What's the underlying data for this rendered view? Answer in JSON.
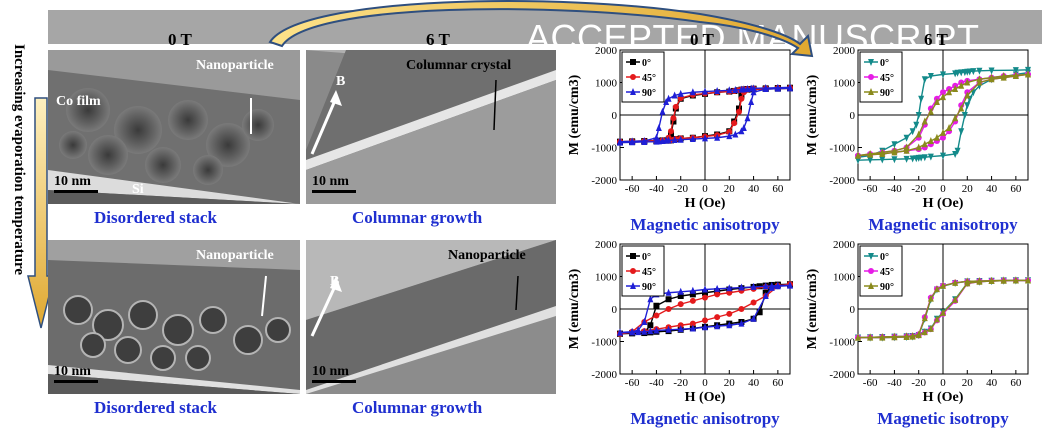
{
  "banner": {
    "text": "ACCEPTED MANUSCRIPT"
  },
  "side_label": "Increasing evaporation temperature",
  "tem_headers": {
    "left": "0 T",
    "right": "6 T"
  },
  "plot_headers": {
    "left": "0 T",
    "right": "6 T"
  },
  "tem": {
    "top_left": {
      "label_particle": "Nanoparticle",
      "label_film": "Co film",
      "label_sub": "Si",
      "scale": "10 nm",
      "caption": "Disordered stack"
    },
    "top_right": {
      "label_crystal": "Columnar crystal",
      "label_b": "B",
      "scale": "10 nm",
      "caption": "Columnar growth"
    },
    "bottom_left": {
      "label_particle": "Nanoparticle",
      "scale": "10 nm",
      "caption": "Disordered stack"
    },
    "bottom_right": {
      "label_particle": "Nanoparticle",
      "label_b": "B",
      "scale": "10 nm",
      "caption": "Columnar growth"
    }
  },
  "colors": {
    "black": "#000000",
    "red": "#e41a1c",
    "blue": "#1f1fd6",
    "teal": "#138a8a",
    "magenta": "#e61ce6",
    "olive": "#8a8a1c",
    "caption": "#1f2fd0"
  },
  "chart_data": [
    {
      "type": "line",
      "id": "top-left",
      "xlabel": "H (Oe)",
      "ylabel": "M (emu/cm3)",
      "xlim": [
        -70,
        70
      ],
      "ylim": [
        -2000,
        2000
      ],
      "xticks": [
        -60,
        -40,
        -20,
        0,
        20,
        40,
        60
      ],
      "yticks": [
        -2000,
        -1000,
        0,
        1000,
        2000
      ],
      "legend": [
        "0°",
        "45°",
        "90°"
      ],
      "caption": "Magnetic anisotropy",
      "series": [
        {
          "name": "0°",
          "color": "#000000",
          "marker": "square",
          "x": [
            -70,
            -60,
            -50,
            -40,
            -35,
            -30,
            -28,
            -26,
            -24,
            -20,
            -10,
            0,
            10,
            20,
            24,
            28,
            30,
            32,
            35,
            40,
            50,
            60,
            70
          ],
          "y_desc": [
            -820,
            -810,
            -800,
            -790,
            -780,
            -760,
            -600,
            -200,
            200,
            500,
            600,
            650,
            700,
            720,
            740,
            760,
            780,
            790,
            800,
            810,
            820,
            830,
            840
          ],
          "y_asc": [
            -840,
            -830,
            -820,
            -810,
            -800,
            -790,
            -780,
            -760,
            -740,
            -720,
            -700,
            -650,
            -600,
            -500,
            -200,
            200,
            600,
            760,
            780,
            790,
            800,
            810,
            820
          ]
        },
        {
          "name": "45°",
          "color": "#e41a1c",
          "marker": "circle",
          "x": [
            -70,
            -60,
            -50,
            -40,
            -35,
            -30,
            -28,
            -26,
            -24,
            -20,
            -10,
            0,
            10,
            20,
            24,
            28,
            30,
            32,
            35,
            40,
            50,
            60,
            70
          ],
          "y_desc": [
            -820,
            -810,
            -800,
            -790,
            -780,
            -700,
            -500,
            -100,
            250,
            520,
            620,
            660,
            700,
            720,
            740,
            760,
            780,
            790,
            800,
            810,
            820,
            830,
            840
          ],
          "y_asc": [
            -840,
            -830,
            -820,
            -810,
            -800,
            -790,
            -780,
            -760,
            -740,
            -720,
            -700,
            -660,
            -620,
            -520,
            -250,
            100,
            500,
            700,
            780,
            790,
            800,
            810,
            820
          ]
        },
        {
          "name": "90°",
          "color": "#1f1fd6",
          "marker": "triangle",
          "x": [
            -70,
            -60,
            -50,
            -40,
            -38,
            -35,
            -32,
            -30,
            -25,
            -20,
            -10,
            0,
            10,
            20,
            25,
            30,
            32,
            35,
            38,
            40,
            50,
            60,
            70
          ],
          "y_desc": [
            -820,
            -810,
            -800,
            -700,
            -400,
            100,
            400,
            500,
            600,
            650,
            700,
            720,
            740,
            760,
            770,
            780,
            790,
            800,
            810,
            820,
            830,
            840,
            850
          ],
          "y_asc": [
            -850,
            -840,
            -830,
            -820,
            -810,
            -800,
            -790,
            -780,
            -770,
            -760,
            -740,
            -720,
            -700,
            -650,
            -600,
            -500,
            -400,
            -100,
            400,
            700,
            800,
            810,
            820
          ]
        }
      ]
    },
    {
      "type": "line",
      "id": "top-right",
      "xlabel": "H (Oe)",
      "ylabel": "M (emu/cm3)",
      "xlim": [
        -70,
        70
      ],
      "ylim": [
        -2000,
        2000
      ],
      "xticks": [
        -60,
        -40,
        -20,
        0,
        20,
        40,
        60
      ],
      "yticks": [
        -2000,
        -1000,
        0,
        1000,
        2000
      ],
      "legend": [
        "0°",
        "45°",
        "90°"
      ],
      "caption": "Magnetic anisotropy",
      "series": [
        {
          "name": "0°",
          "color": "#138a8a",
          "marker": "triangle-down",
          "x": [
            -70,
            -60,
            -50,
            -40,
            -30,
            -25,
            -22,
            -20,
            -18,
            -15,
            -10,
            0,
            10,
            12,
            15,
            18,
            20,
            22,
            25,
            30,
            40,
            60,
            70
          ],
          "y_desc": [
            -1300,
            -1250,
            -1100,
            -900,
            -700,
            -500,
            -300,
            0,
            500,
            1100,
            1200,
            1250,
            1280,
            1300,
            1310,
            1320,
            1330,
            1340,
            1350,
            1360,
            1370,
            1380,
            1390
          ],
          "y_asc": [
            -1390,
            -1380,
            -1370,
            -1360,
            -1350,
            -1340,
            -1330,
            -1320,
            -1310,
            -1300,
            -1280,
            -1250,
            -1200,
            -1100,
            -500,
            0,
            300,
            500,
            700,
            900,
            1100,
            1250,
            1300
          ]
        },
        {
          "name": "45°",
          "color": "#e61ce6",
          "marker": "circle",
          "x": [
            -70,
            -60,
            -50,
            -40,
            -30,
            -20,
            -15,
            -10,
            -5,
            0,
            5,
            10,
            15,
            20,
            30,
            40,
            50,
            60,
            70
          ],
          "y_desc": [
            -1250,
            -1200,
            -1150,
            -1100,
            -1000,
            -700,
            -300,
            200,
            500,
            700,
            800,
            900,
            1000,
            1050,
            1100,
            1150,
            1200,
            1220,
            1250
          ],
          "y_asc": [
            -1250,
            -1220,
            -1200,
            -1150,
            -1100,
            -1050,
            -1000,
            -900,
            -800,
            -700,
            -500,
            -200,
            300,
            700,
            1000,
            1100,
            1150,
            1200,
            1250
          ]
        },
        {
          "name": "90°",
          "color": "#8a8a1c",
          "marker": "triangle",
          "x": [
            -70,
            -60,
            -50,
            -40,
            -30,
            -20,
            -15,
            -10,
            -5,
            0,
            5,
            10,
            15,
            20,
            30,
            40,
            50,
            60,
            70
          ],
          "y_desc": [
            -1250,
            -1200,
            -1150,
            -1100,
            -1000,
            -600,
            -200,
            100,
            400,
            550,
            700,
            800,
            900,
            1000,
            1100,
            1150,
            1200,
            1220,
            1250
          ],
          "y_asc": [
            -1250,
            -1220,
            -1200,
            -1150,
            -1100,
            -1000,
            -900,
            -800,
            -700,
            -550,
            -400,
            -100,
            200,
            600,
            1000,
            1100,
            1150,
            1200,
            1250
          ]
        }
      ]
    },
    {
      "type": "line",
      "id": "bottom-left",
      "xlabel": "H (Oe)",
      "ylabel": "M (emu/cm3)",
      "xlim": [
        -70,
        70
      ],
      "ylim": [
        -2000,
        2000
      ],
      "xticks": [
        -60,
        -40,
        -20,
        0,
        20,
        40,
        60
      ],
      "yticks": [
        -2000,
        -1000,
        0,
        1000,
        2000
      ],
      "legend": [
        "0°",
        "45°",
        "90°"
      ],
      "caption": "Magnetic anisotropy",
      "series": [
        {
          "name": "0°",
          "color": "#000000",
          "marker": "square",
          "x": [
            -70,
            -60,
            -50,
            -45,
            -40,
            -30,
            -20,
            -10,
            0,
            10,
            20,
            30,
            40,
            45,
            50,
            55,
            60,
            70
          ],
          "y_desc": [
            -760,
            -740,
            -720,
            -500,
            100,
            300,
            400,
            450,
            500,
            550,
            600,
            640,
            680,
            700,
            720,
            740,
            750,
            760
          ],
          "y_asc": [
            -760,
            -750,
            -740,
            -720,
            -700,
            -680,
            -640,
            -600,
            -550,
            -500,
            -450,
            -400,
            -300,
            -100,
            500,
            700,
            740,
            760
          ]
        },
        {
          "name": "45°",
          "color": "#e41a1c",
          "marker": "circle",
          "x": [
            -70,
            -60,
            -50,
            -40,
            -30,
            -20,
            -10,
            0,
            10,
            20,
            30,
            40,
            50,
            60,
            70
          ],
          "y_desc": [
            -760,
            -700,
            -400,
            -200,
            0,
            150,
            250,
            350,
            450,
            500,
            560,
            620,
            680,
            720,
            760
          ],
          "y_asc": [
            -760,
            -720,
            -680,
            -620,
            -560,
            -500,
            -450,
            -350,
            -250,
            -150,
            0,
            200,
            400,
            700,
            760
          ]
        },
        {
          "name": "90°",
          "color": "#1f1fd6",
          "marker": "triangle",
          "x": [
            -70,
            -60,
            -55,
            -50,
            -45,
            -40,
            -30,
            -20,
            -10,
            0,
            10,
            20,
            30,
            40,
            50,
            55,
            60,
            70
          ],
          "y_desc": [
            -720,
            -700,
            -650,
            -400,
            300,
            450,
            500,
            530,
            560,
            600,
            620,
            640,
            660,
            680,
            700,
            710,
            720,
            730
          ],
          "y_asc": [
            -730,
            -720,
            -710,
            -700,
            -680,
            -660,
            -640,
            -620,
            -600,
            -560,
            -530,
            -500,
            -450,
            -300,
            400,
            650,
            700,
            720
          ]
        }
      ]
    },
    {
      "type": "line",
      "id": "bottom-right",
      "xlabel": "H (Oe)",
      "ylabel": "M (emu/cm3)",
      "xlim": [
        -70,
        70
      ],
      "ylim": [
        -2000,
        2000
      ],
      "xticks": [
        -60,
        -40,
        -20,
        0,
        20,
        40,
        60
      ],
      "yticks": [
        -2000,
        -1000,
        0,
        1000,
        2000
      ],
      "legend": [
        "0°",
        "45°",
        "90°"
      ],
      "caption": "Magnetic isotropy",
      "series": [
        {
          "name": "0°",
          "color": "#138a8a",
          "marker": "triangle-down",
          "x": [
            -70,
            -60,
            -50,
            -40,
            -30,
            -25,
            -20,
            -15,
            -10,
            -5,
            0,
            10,
            20,
            30,
            40,
            50,
            60,
            70
          ],
          "y_desc": [
            -880,
            -870,
            -860,
            -850,
            -840,
            -830,
            -800,
            -300,
            300,
            600,
            700,
            800,
            850,
            860,
            870,
            880,
            880,
            880
          ],
          "y_asc": [
            -880,
            -880,
            -880,
            -870,
            -860,
            -850,
            -800,
            -700,
            -600,
            -300,
            -100,
            300,
            800,
            840,
            860,
            870,
            880,
            880
          ]
        },
        {
          "name": "45°",
          "color": "#e61ce6",
          "marker": "circle",
          "x": [
            -70,
            -60,
            -50,
            -40,
            -30,
            -25,
            -20,
            -15,
            -10,
            -5,
            0,
            10,
            20,
            30,
            40,
            50,
            60,
            70
          ],
          "y_desc": [
            -880,
            -870,
            -860,
            -850,
            -840,
            -830,
            -780,
            -250,
            350,
            620,
            720,
            810,
            850,
            860,
            870,
            880,
            880,
            880
          ],
          "y_asc": [
            -880,
            -880,
            -880,
            -870,
            -860,
            -850,
            -810,
            -720,
            -620,
            -350,
            -150,
            250,
            780,
            840,
            860,
            870,
            880,
            880
          ]
        },
        {
          "name": "90°",
          "color": "#8a8a1c",
          "marker": "triangle",
          "x": [
            -70,
            -60,
            -50,
            -40,
            -30,
            -25,
            -20,
            -15,
            -10,
            -5,
            0,
            10,
            20,
            30,
            40,
            50,
            60,
            70
          ],
          "y_desc": [
            -880,
            -870,
            -860,
            -850,
            -840,
            -830,
            -790,
            -280,
            320,
            610,
            710,
            805,
            850,
            860,
            870,
            880,
            880,
            880
          ],
          "y_asc": [
            -880,
            -880,
            -880,
            -870,
            -860,
            -850,
            -805,
            -710,
            -610,
            -320,
            -120,
            280,
            790,
            840,
            860,
            870,
            880,
            880
          ]
        }
      ]
    }
  ]
}
